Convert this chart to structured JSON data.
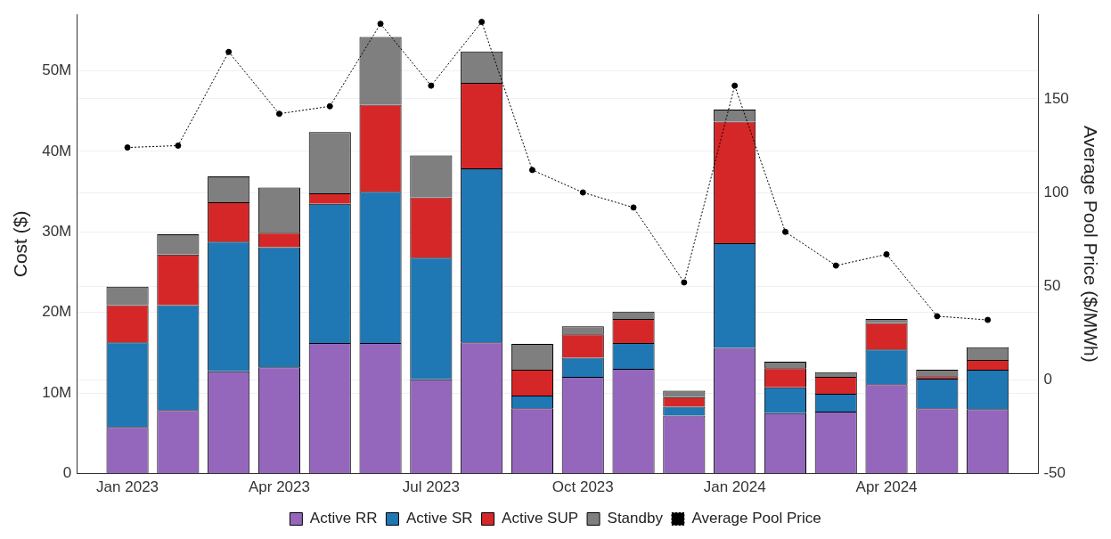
{
  "chart_data": {
    "type": "bar",
    "stacked": true,
    "categories": [
      "Jan 2023",
      null,
      null,
      "Apr 2023",
      null,
      null,
      "Jul 2023",
      null,
      null,
      "Oct 2023",
      null,
      null,
      "Jan 2024",
      null,
      null,
      "Apr 2024",
      null,
      null
    ],
    "series": [
      {
        "name": "Active RR",
        "color": "#9467bd",
        "values": [
          5800000,
          7900000,
          12700000,
          13200000,
          16200000,
          16200000,
          11700000,
          16300000,
          8100000,
          12000000,
          13000000,
          7200000,
          15600000,
          7500000,
          7700000,
          11100000,
          8100000,
          8000000
        ]
      },
      {
        "name": "Active SR",
        "color": "#1f77b4",
        "values": [
          10500000,
          13000000,
          16100000,
          14900000,
          17300000,
          18800000,
          15100000,
          21600000,
          1600000,
          2400000,
          3200000,
          1100000,
          13000000,
          3200000,
          2200000,
          4300000,
          3700000,
          4900000
        ]
      },
      {
        "name": "Active SUP",
        "color": "#d62728",
        "values": [
          4600000,
          6300000,
          4900000,
          1800000,
          1300000,
          10800000,
          7500000,
          10600000,
          3200000,
          2900000,
          3000000,
          1200000,
          15100000,
          2400000,
          2100000,
          3300000,
          300000,
          1200000
        ]
      },
      {
        "name": "Standby",
        "color": "#7f7f7f",
        "values": [
          2300000,
          2500000,
          3200000,
          5600000,
          7600000,
          8400000,
          5200000,
          3900000,
          3200000,
          1000000,
          900000,
          800000,
          1500000,
          800000,
          600000,
          500000,
          800000,
          1600000
        ]
      },
      {
        "name": "Average Pool Price",
        "type": "line",
        "axis": "y2",
        "color": "#000000",
        "marker": "circle",
        "line_style": "dotted",
        "values": [
          124,
          125,
          175,
          142,
          146,
          190,
          157,
          191,
          112,
          100,
          92,
          52,
          157,
          79,
          61,
          67,
          34,
          32
        ]
      }
    ],
    "ylabel": "Cost ($)",
    "y2label": "Average Pool Price ($/MWh)",
    "ylim": [
      0,
      57000000
    ],
    "yticks": [
      0,
      {
        "value": 10000000,
        "label": "10M"
      },
      {
        "value": 20000000,
        "label": "20M"
      },
      {
        "value": 30000000,
        "label": "30M"
      },
      {
        "value": 40000000,
        "label": "40M"
      },
      {
        "value": 50000000,
        "label": "50M"
      }
    ],
    "y2lim": [
      -50,
      195
    ],
    "y2ticks": [
      -50,
      0,
      50,
      100,
      150
    ],
    "grid": "y",
    "legend": "bottom"
  }
}
